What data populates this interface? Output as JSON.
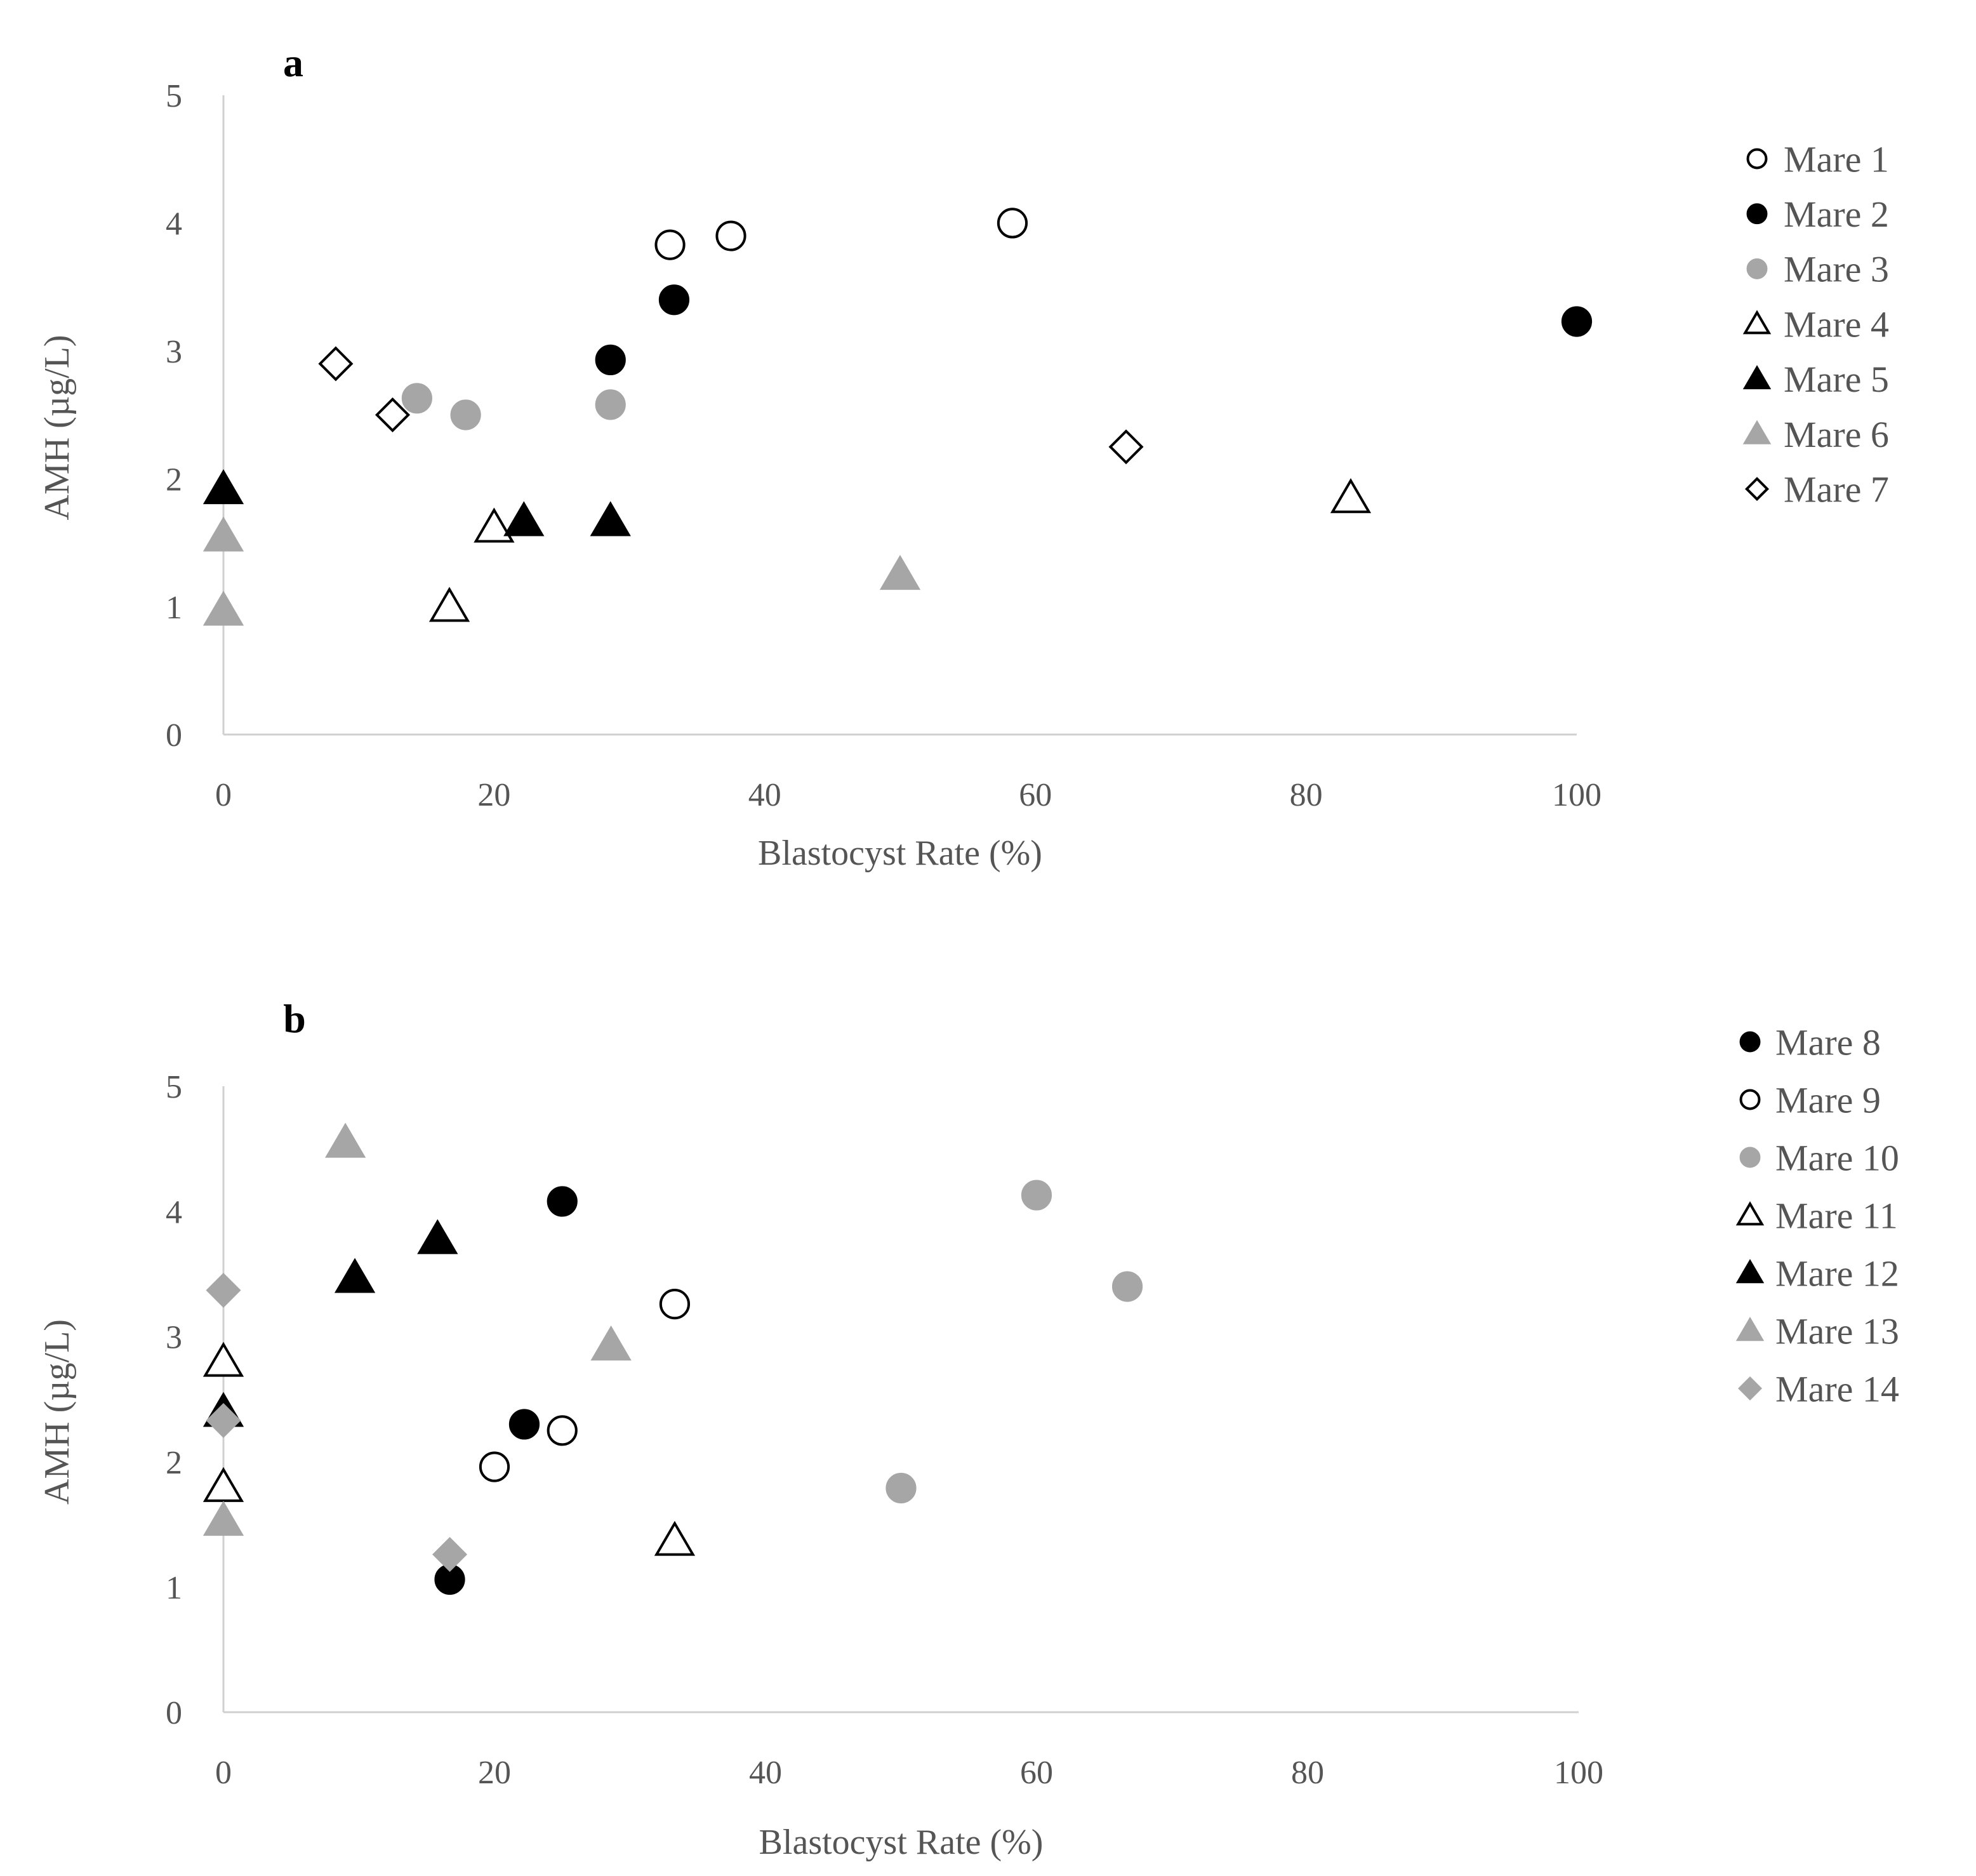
{
  "chart_data": [
    {
      "type": "scatter",
      "panel_label": "a",
      "xlabel": "Blastocyst Rate (%)",
      "ylabel": "AMH (µg/L)",
      "xlim": [
        0,
        100
      ],
      "ylim": [
        0,
        5
      ],
      "xticks": [
        0,
        20,
        40,
        60,
        80,
        100
      ],
      "yticks": [
        0,
        1,
        2,
        3,
        4,
        5
      ],
      "grid": false,
      "legend_position": "right",
      "series": [
        {
          "name": "Mare 1",
          "marker": "circle",
          "fill": "#ffffff",
          "stroke": "#000000",
          "points": [
            [
              33,
              3.83
            ],
            [
              37.5,
              3.9
            ],
            [
              58.3,
              4.0
            ]
          ]
        },
        {
          "name": "Mare 2",
          "marker": "circle",
          "fill": "#000000",
          "stroke": "#000000",
          "points": [
            [
              28.6,
              2.93
            ],
            [
              33.3,
              3.4
            ],
            [
              100,
              3.23
            ]
          ]
        },
        {
          "name": "Mare 3",
          "marker": "circle",
          "fill": "#a6a6a6",
          "stroke": "#a6a6a6",
          "points": [
            [
              14.3,
              2.63
            ],
            [
              17.9,
              2.5
            ],
            [
              28.6,
              2.58
            ]
          ]
        },
        {
          "name": "Mare 4",
          "marker": "triangle",
          "fill": "#ffffff",
          "stroke": "#000000",
          "points": [
            [
              16.7,
              1.0
            ],
            [
              20,
              1.62
            ],
            [
              83.3,
              1.85
            ]
          ]
        },
        {
          "name": "Mare 5",
          "marker": "triangle",
          "fill": "#000000",
          "stroke": "#000000",
          "points": [
            [
              0,
              1.92
            ],
            [
              22.2,
              1.67
            ],
            [
              28.6,
              1.67
            ]
          ]
        },
        {
          "name": "Mare 6",
          "marker": "triangle",
          "fill": "#a6a6a6",
          "stroke": "#a6a6a6",
          "points": [
            [
              0,
              0.97
            ],
            [
              0,
              1.55
            ],
            [
              50,
              1.25
            ]
          ]
        },
        {
          "name": "Mare 7",
          "marker": "diamond",
          "fill": "#ffffff",
          "stroke": "#000000",
          "points": [
            [
              8.3,
              2.9
            ],
            [
              12.5,
              2.5
            ],
            [
              66.7,
              2.25
            ]
          ]
        }
      ]
    },
    {
      "type": "scatter",
      "panel_label": "b",
      "xlabel": "Blastocyst Rate (%)",
      "ylabel": "AMH (µg/L)",
      "xlim": [
        0,
        100
      ],
      "ylim": [
        0,
        5
      ],
      "xticks": [
        0,
        20,
        40,
        60,
        80,
        100
      ],
      "yticks": [
        0,
        1,
        2,
        3,
        4,
        5
      ],
      "grid": false,
      "legend_position": "right",
      "series": [
        {
          "name": "Mare 8",
          "marker": "circle",
          "fill": "#000000",
          "stroke": "#000000",
          "points": [
            [
              16.7,
              1.06
            ],
            [
              22.2,
              2.3
            ],
            [
              25,
              4.08
            ]
          ]
        },
        {
          "name": "Mare 9",
          "marker": "circle",
          "fill": "#ffffff",
          "stroke": "#000000",
          "points": [
            [
              20,
              1.96
            ],
            [
              25,
              2.25
            ],
            [
              33.3,
              3.26
            ]
          ]
        },
        {
          "name": "Mare 10",
          "marker": "circle",
          "fill": "#a6a6a6",
          "stroke": "#a6a6a6",
          "points": [
            [
              50,
              1.79
            ],
            [
              60,
              4.13
            ],
            [
              66.7,
              3.4
            ]
          ]
        },
        {
          "name": "Mare 11",
          "marker": "triangle",
          "fill": "#ffffff",
          "stroke": "#000000",
          "points": [
            [
              0,
              1.8
            ],
            [
              0,
              2.8
            ],
            [
              33.3,
              1.37
            ]
          ]
        },
        {
          "name": "Mare 12",
          "marker": "triangle",
          "fill": "#000000",
          "stroke": "#000000",
          "points": [
            [
              0,
              2.4
            ],
            [
              9.7,
              3.47
            ],
            [
              15.8,
              3.78
            ]
          ]
        },
        {
          "name": "Mare 13",
          "marker": "triangle",
          "fill": "#a6a6a6",
          "stroke": "#a6a6a6",
          "points": [
            [
              0,
              1.53
            ],
            [
              9,
              4.55
            ],
            [
              28.6,
              2.93
            ]
          ]
        },
        {
          "name": "Mare 14",
          "marker": "diamond",
          "fill": "#a6a6a6",
          "stroke": "#a6a6a6",
          "points": [
            [
              0,
              3.37
            ],
            [
              0,
              2.33
            ],
            [
              16.7,
              1.26
            ]
          ]
        }
      ]
    }
  ]
}
